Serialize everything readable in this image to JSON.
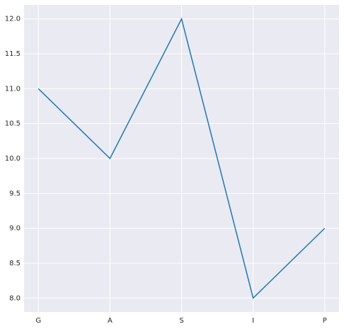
{
  "chart_data": {
    "type": "line",
    "categories": [
      "G",
      "A",
      "S",
      "I",
      "P"
    ],
    "values": [
      11,
      10,
      12,
      8,
      9
    ],
    "color": "#1f77b4",
    "ylim": [
      7.8,
      12.2
    ],
    "yticks": [
      {
        "value": 8,
        "label": "8.0"
      },
      {
        "value": 8.5,
        "label": "8.5"
      },
      {
        "value": 9,
        "label": "9.0"
      },
      {
        "value": 9.5,
        "label": "9.5"
      },
      {
        "value": 10,
        "label": "10.0"
      },
      {
        "value": 10.5,
        "label": "10.5"
      },
      {
        "value": 11,
        "label": "11.0"
      },
      {
        "value": 11.5,
        "label": "11.5"
      },
      {
        "value": 12,
        "label": "12.0"
      }
    ],
    "grid": true
  }
}
